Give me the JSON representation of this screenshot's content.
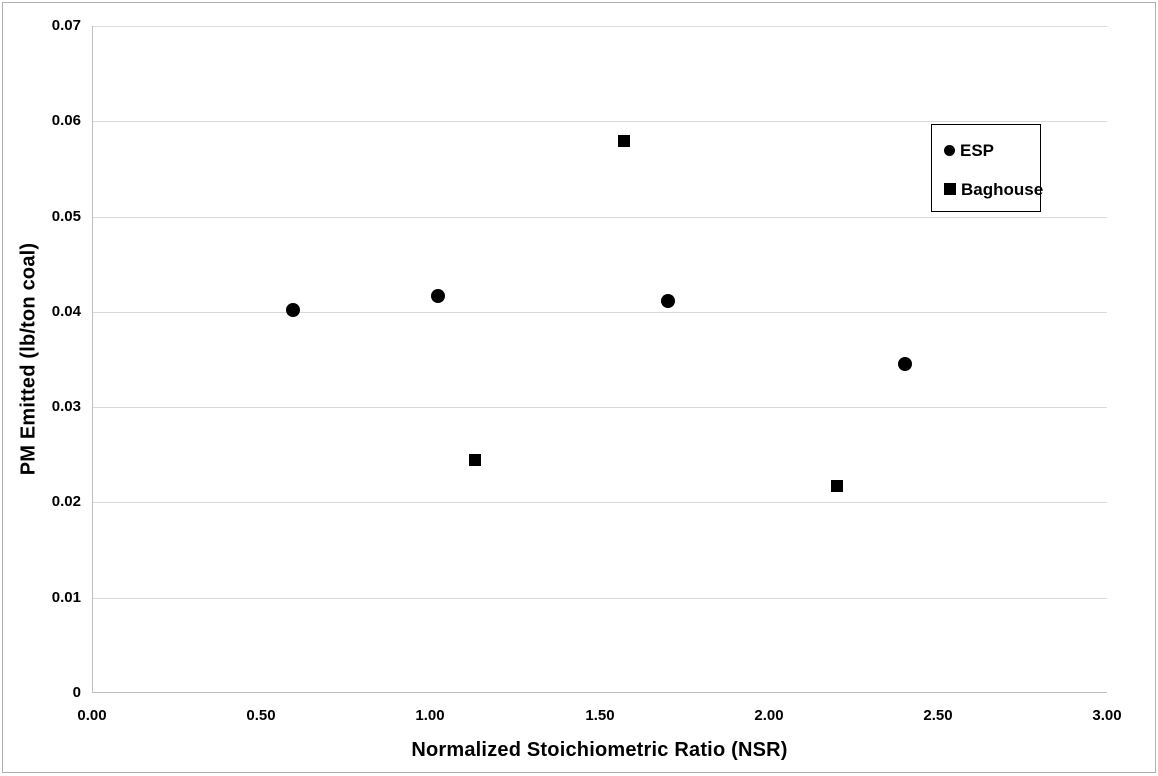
{
  "chart_data": {
    "type": "scatter",
    "title": "",
    "xlabel": "Normalized Stoichiometric Ratio (NSR)",
    "ylabel": "PM Emitted (lb/ton coal)",
    "xlim": [
      0.0,
      3.0
    ],
    "ylim": [
      0.0,
      0.07
    ],
    "x_ticks": [
      {
        "value": 0.0,
        "label": "0.00"
      },
      {
        "value": 0.5,
        "label": "0.50"
      },
      {
        "value": 1.0,
        "label": "1.00"
      },
      {
        "value": 1.5,
        "label": "1.50"
      },
      {
        "value": 2.0,
        "label": "2.00"
      },
      {
        "value": 2.5,
        "label": "2.50"
      },
      {
        "value": 3.0,
        "label": "3.00"
      }
    ],
    "y_ticks": [
      {
        "value": 0.0,
        "label": "0"
      },
      {
        "value": 0.01,
        "label": "0.01"
      },
      {
        "value": 0.02,
        "label": "0.02"
      },
      {
        "value": 0.03,
        "label": "0.03"
      },
      {
        "value": 0.04,
        "label": "0.04"
      },
      {
        "value": 0.05,
        "label": "0.05"
      },
      {
        "value": 0.06,
        "label": "0.06"
      },
      {
        "value": 0.07,
        "label": "0.07"
      }
    ],
    "grid": "horizontal",
    "gridline_color": "#d9d9d9",
    "axis_line_color": "#bfbfbf",
    "marker_color": "#000000",
    "legend_position": "inside-upper-right",
    "series": [
      {
        "name": "ESP",
        "marker": "circle",
        "points": [
          {
            "x": 0.59,
            "y": 0.0402
          },
          {
            "x": 1.02,
            "y": 0.0417
          },
          {
            "x": 1.7,
            "y": 0.0411
          },
          {
            "x": 2.4,
            "y": 0.0345
          }
        ]
      },
      {
        "name": "Baghouse",
        "marker": "square",
        "points": [
          {
            "x": 1.13,
            "y": 0.0245
          },
          {
            "x": 1.57,
            "y": 0.0579
          },
          {
            "x": 2.2,
            "y": 0.0217
          }
        ]
      }
    ]
  }
}
